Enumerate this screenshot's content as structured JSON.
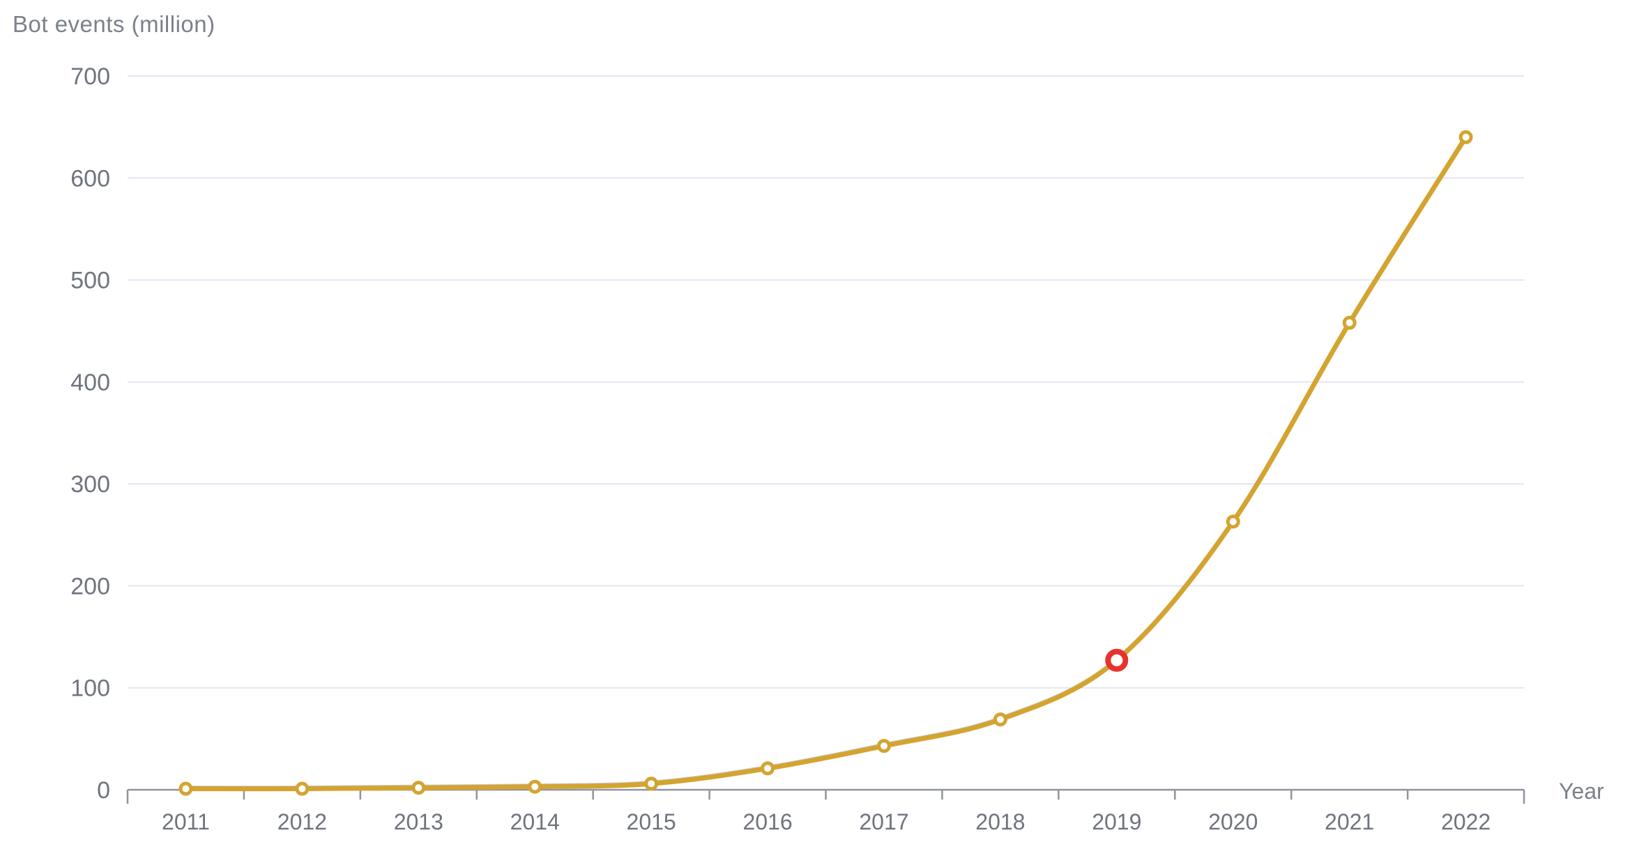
{
  "chart_data": {
    "type": "line",
    "title": "Bot events (million)",
    "xlabel": "Year",
    "ylabel": "Bot events (million)",
    "categories": [
      "2011",
      "2012",
      "2013",
      "2014",
      "2015",
      "2016",
      "2017",
      "2018",
      "2019",
      "2020",
      "2021",
      "2022"
    ],
    "series": [
      {
        "name": "Bot events",
        "values": [
          1,
          1,
          2,
          3,
          6,
          21,
          43,
          69,
          127,
          263,
          458,
          640
        ]
      }
    ],
    "highlight_point": {
      "category": "2019",
      "value": 127,
      "index": 8
    },
    "ylim": [
      0,
      700
    ],
    "y_ticks": [
      0,
      100,
      200,
      300,
      400,
      500,
      600,
      700
    ],
    "grid": "horizontal",
    "legend": false,
    "colors": {
      "line": "#D4A431",
      "line_shadow": "#9AA2B2",
      "marker_fill": "#FFFFFF",
      "highlight": "#E6342C",
      "gridline": "#E2E6F2",
      "axis": "#8F949E",
      "tick_text": "#6E747F",
      "title_text": "#7B818B"
    }
  }
}
